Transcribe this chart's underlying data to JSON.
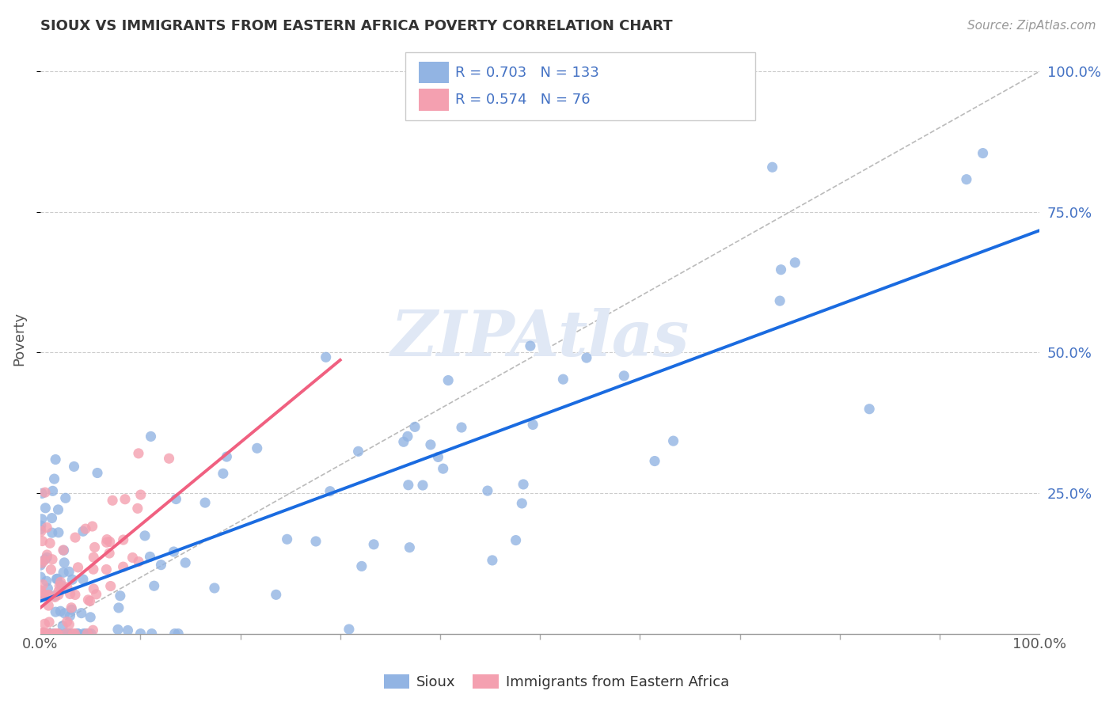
{
  "title": "SIOUX VS IMMIGRANTS FROM EASTERN AFRICA POVERTY CORRELATION CHART",
  "source": "Source: ZipAtlas.com",
  "ylabel": "Poverty",
  "xlim": [
    0.0,
    1.0
  ],
  "ylim": [
    0.0,
    1.05
  ],
  "legend_labels": [
    "Sioux",
    "Immigrants from Eastern Africa"
  ],
  "sioux_color": "#92b4e3",
  "immigrants_color": "#f4a0b0",
  "sioux_line_color": "#1a6be0",
  "immigrants_line_color": "#f06080",
  "R_sioux": 0.703,
  "N_sioux": 133,
  "R_immigrants": 0.574,
  "N_immigrants": 76,
  "watermark": "ZIPAtlas"
}
